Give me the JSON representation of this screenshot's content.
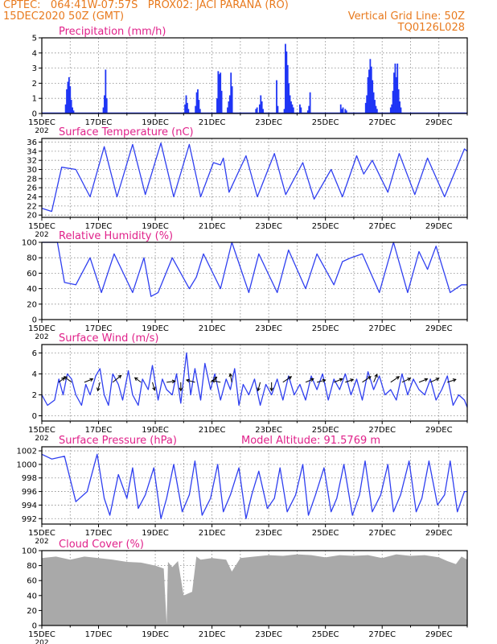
{
  "header": {
    "line1_left": "CPTEC:   064:41W-07:57S   PROX02: JACI PARANA (RO)",
    "line2_left": "15DEC2020 50Z (GMT)",
    "line2_right": "Vertical Grid Line: 50Z",
    "line3_right": "TQ0126L028"
  },
  "colors": {
    "series": "#2f3ff0",
    "bars": "#1f35f5",
    "title": "#e0218a",
    "header": "#e87a1e",
    "cloud": "#a9a9a9",
    "grid": "#888888",
    "wind_arrow": "#000000"
  },
  "x_axis": {
    "tick_labels": [
      "15DEC",
      "17DEC",
      "19DEC",
      "21DEC",
      "23DEC",
      "25DEC",
      "27DEC",
      "29DEC"
    ],
    "year_fragment": "202",
    "day_range": [
      0,
      15
    ]
  },
  "chart_data": [
    {
      "type": "bar",
      "title": "Precipitation  (mm/h)",
      "ylim": [
        0,
        5
      ],
      "yticks": [
        "0",
        "1",
        "2",
        "3",
        "4",
        "5"
      ],
      "grid": true,
      "x_unit": "days since 15DEC",
      "x": [
        0.84,
        0.88,
        0.92,
        0.96,
        1.0,
        1.04,
        1.08,
        1.12,
        2.17,
        2.21,
        2.25,
        2.29,
        5.05,
        5.09,
        5.13,
        5.17,
        5.42,
        5.46,
        5.5,
        5.54,
        5.58,
        6.18,
        6.22,
        6.26,
        6.3,
        6.34,
        6.55,
        6.59,
        6.63,
        6.67,
        6.71,
        7.55,
        7.59,
        7.68,
        7.72,
        7.76,
        7.8,
        8.28,
        8.32,
        8.55,
        8.59,
        8.63,
        8.67,
        8.71,
        8.75,
        8.79,
        8.83,
        8.87,
        9.1,
        9.14,
        9.38,
        9.42,
        9.46,
        10.54,
        10.58,
        10.62,
        10.7,
        10.74,
        11.42,
        11.46,
        11.5,
        11.54,
        11.58,
        11.62,
        11.66,
        11.7,
        11.74,
        11.78,
        11.82,
        12.3,
        12.34,
        12.38,
        12.42,
        12.46,
        12.5,
        12.54,
        12.58,
        12.62,
        12.66
      ],
      "values": [
        0.6,
        1.6,
        2.1,
        2.4,
        1.8,
        0.9,
        0.4,
        0.2,
        0.4,
        1.2,
        2.9,
        1.0,
        0.6,
        1.2,
        0.7,
        0.3,
        0.5,
        1.4,
        1.6,
        0.9,
        0.3,
        1.0,
        2.8,
        2.6,
        2.7,
        1.5,
        0.4,
        0.8,
        1.2,
        2.7,
        1.8,
        0.3,
        0.4,
        0.6,
        1.2,
        0.8,
        0.3,
        2.2,
        0.5,
        0.3,
        4.6,
        4.1,
        3.2,
        2.0,
        1.2,
        0.8,
        0.6,
        0.4,
        0.6,
        0.4,
        0.2,
        0.5,
        1.4,
        0.6,
        0.3,
        0.4,
        0.3,
        0.2,
        0.7,
        1.2,
        2.4,
        2.9,
        3.6,
        3.1,
        2.2,
        1.4,
        0.9,
        0.5,
        0.3,
        0.4,
        0.6,
        1.5,
        2.7,
        3.3,
        2.4,
        3.3,
        1.6,
        0.8,
        0.4
      ]
    },
    {
      "type": "line",
      "title": "Surface Temperature (nC)",
      "ylim": [
        19.5,
        36.8
      ],
      "yticks": [
        "20",
        "22",
        "24",
        "26",
        "28",
        "30",
        "32",
        "34",
        "36"
      ],
      "grid": true,
      "x_unit": "days since 15DEC",
      "x": [
        0,
        0.35,
        0.7,
        1.2,
        1.7,
        2.2,
        2.65,
        3.2,
        3.65,
        4.2,
        4.65,
        5.2,
        5.6,
        6.05,
        6.3,
        6.4,
        6.6,
        7.2,
        7.6,
        8.2,
        8.6,
        9.2,
        9.6,
        10.2,
        10.6,
        11.1,
        11.35,
        11.65,
        12.2,
        12.6,
        13.15,
        13.6,
        14.2,
        14.6,
        14.9,
        15.0
      ],
      "values": [
        21.5,
        20.8,
        30.5,
        30.0,
        24.0,
        35.0,
        24.0,
        35.5,
        24.5,
        35.8,
        24.0,
        35.5,
        24.0,
        31.5,
        31.0,
        32.5,
        25.0,
        33.0,
        24.0,
        33.5,
        24.5,
        31.5,
        23.5,
        30.0,
        24.0,
        33.0,
        29.0,
        32.0,
        25.0,
        33.5,
        24.5,
        32.5,
        24.0,
        30.0,
        34.5,
        34.0
      ]
    },
    {
      "type": "line",
      "title": "Relative Humidity (%)",
      "ylim": [
        0,
        100
      ],
      "yticks": [
        "0",
        "20",
        "40",
        "60",
        "80",
        "100"
      ],
      "grid": true,
      "x_unit": "days since 15DEC",
      "x": [
        0,
        0.55,
        0.8,
        1.2,
        1.7,
        2.1,
        2.55,
        3.2,
        3.6,
        3.85,
        4.1,
        4.6,
        5.2,
        5.45,
        5.7,
        6.3,
        6.7,
        7.3,
        7.65,
        8.3,
        8.7,
        9.3,
        9.7,
        10.3,
        10.6,
        10.9,
        11.3,
        11.9,
        12.4,
        12.9,
        13.3,
        13.6,
        13.9,
        14.4,
        14.8,
        15.0
      ],
      "values": [
        100,
        100,
        48,
        45,
        80,
        35,
        85,
        35,
        80,
        30,
        35,
        80,
        40,
        55,
        85,
        40,
        100,
        35,
        85,
        35,
        90,
        40,
        85,
        45,
        75,
        80,
        85,
        35,
        100,
        35,
        88,
        65,
        95,
        35,
        45,
        45
      ]
    },
    {
      "type": "line",
      "title": "Surface  Wind  (m/s)",
      "ylim": [
        -0.5,
        6.8
      ],
      "yticks": [
        "0",
        "2",
        "4",
        "6"
      ],
      "grid": true,
      "x_unit": "days since 15DEC",
      "x": [
        0,
        0.2,
        0.45,
        0.6,
        0.75,
        0.9,
        1.05,
        1.2,
        1.4,
        1.55,
        1.7,
        1.9,
        2.05,
        2.2,
        2.35,
        2.5,
        2.7,
        2.85,
        3.05,
        3.2,
        3.4,
        3.55,
        3.75,
        3.9,
        4.1,
        4.25,
        4.4,
        4.6,
        4.75,
        4.9,
        5.1,
        5.25,
        5.4,
        5.6,
        5.75,
        5.95,
        6.1,
        6.3,
        6.5,
        6.65,
        6.8,
        6.95,
        7.1,
        7.3,
        7.5,
        7.7,
        7.9,
        8.1,
        8.3,
        8.5,
        8.7,
        8.9,
        9.1,
        9.3,
        9.5,
        9.7,
        9.9,
        10.1,
        10.3,
        10.5,
        10.7,
        10.9,
        11.1,
        11.3,
        11.5,
        11.7,
        11.9,
        12.1,
        12.3,
        12.5,
        12.7,
        12.9,
        13.1,
        13.3,
        13.5,
        13.7,
        13.9,
        14.1,
        14.3,
        14.5,
        14.7,
        14.9,
        15.0
      ],
      "values": [
        2.0,
        1.0,
        1.5,
        3.5,
        2.0,
        4.0,
        3.5,
        2.0,
        1.0,
        3.0,
        2.0,
        3.8,
        4.5,
        2.0,
        1.0,
        4.0,
        3.0,
        1.5,
        4.3,
        2.0,
        1.0,
        3.5,
        2.5,
        4.8,
        1.5,
        3.5,
        2.5,
        2.0,
        4.0,
        1.2,
        6.0,
        2.0,
        4.5,
        1.5,
        5.0,
        2.5,
        4.0,
        1.5,
        3.5,
        2.5,
        4.5,
        1.0,
        3.0,
        2.0,
        3.5,
        1.0,
        3.0,
        2.0,
        3.5,
        1.5,
        3.8,
        2.0,
        3.0,
        1.5,
        3.8,
        2.5,
        4.0,
        1.5,
        3.5,
        2.5,
        4.0,
        2.0,
        3.5,
        1.5,
        4.2,
        2.5,
        3.8,
        2.0,
        2.5,
        1.5,
        4.0,
        2.0,
        3.5,
        2.5,
        2.0,
        3.5,
        1.5,
        2.5,
        3.8,
        1.0,
        2.0,
        1.5,
        0.8
      ]
    },
    {
      "type": "line",
      "title": "Surface  Pressure  (hPa)",
      "annotation": "Model  Altitude:  91.5769  m",
      "ylim": [
        991.2,
        1002.6
      ],
      "yticks": [
        "992",
        "994",
        "996",
        "998",
        "1000",
        "1002"
      ],
      "grid": true,
      "x_unit": "days since 15DEC",
      "x": [
        0,
        0.35,
        0.8,
        1.2,
        1.6,
        1.95,
        2.2,
        2.4,
        2.7,
        3.0,
        3.2,
        3.4,
        3.65,
        3.95,
        4.2,
        4.4,
        4.65,
        4.95,
        5.2,
        5.4,
        5.65,
        5.95,
        6.2,
        6.4,
        6.65,
        6.95,
        7.2,
        7.4,
        7.65,
        7.95,
        8.2,
        8.4,
        8.65,
        8.95,
        9.2,
        9.4,
        9.65,
        9.95,
        10.2,
        10.4,
        10.65,
        10.95,
        11.2,
        11.4,
        11.65,
        11.95,
        12.2,
        12.4,
        12.65,
        12.95,
        13.2,
        13.4,
        13.65,
        13.95,
        14.2,
        14.4,
        14.65,
        14.9,
        15.0
      ],
      "values": [
        1001.5,
        1000.8,
        1001.2,
        994.5,
        996.0,
        1001.5,
        995.0,
        992.5,
        998.5,
        995.0,
        999.5,
        993.5,
        995.5,
        999.5,
        992.0,
        995.0,
        1000.0,
        993.0,
        995.5,
        1000.5,
        992.5,
        995.0,
        1000.0,
        993.0,
        995.5,
        999.5,
        992.0,
        995.5,
        999.0,
        993.5,
        995.0,
        999.5,
        993.0,
        995.5,
        1000.0,
        992.5,
        995.5,
        999.5,
        993.0,
        995.0,
        1000.0,
        992.5,
        995.5,
        1000.5,
        993.0,
        995.5,
        1000.0,
        993.0,
        995.5,
        1000.5,
        993.0,
        995.0,
        1000.5,
        994.0,
        995.5,
        1000.5,
        993.0,
        996.0,
        996.0
      ]
    },
    {
      "type": "area",
      "title": "Cloud Cover (%)",
      "ylim": [
        0,
        100
      ],
      "yticks": [
        "0",
        "20",
        "40",
        "60",
        "80",
        "100"
      ],
      "grid": true,
      "x_unit": "days since 15DEC",
      "x": [
        0,
        0.5,
        1.0,
        1.5,
        2.0,
        2.5,
        3.0,
        3.5,
        4.0,
        4.3,
        4.4,
        4.45,
        4.6,
        4.8,
        5.0,
        5.3,
        5.45,
        5.6,
        6.0,
        6.5,
        6.7,
        7.0,
        7.5,
        8.0,
        8.5,
        9.0,
        9.5,
        10.0,
        10.5,
        11.0,
        11.5,
        12.0,
        12.5,
        13.0,
        13.5,
        14.0,
        14.3,
        14.6,
        14.8,
        15.0
      ],
      "values": [
        90,
        92,
        88,
        92,
        90,
        88,
        85,
        84,
        80,
        76,
        2,
        85,
        78,
        86,
        40,
        45,
        92,
        88,
        90,
        88,
        72,
        90,
        92,
        94,
        93,
        95,
        94,
        91,
        94,
        93,
        94,
        90,
        95,
        93,
        94,
        91,
        86,
        82,
        92,
        88
      ]
    }
  ],
  "wind_vectors": {
    "x": [
      0.6,
      1.05,
      1.5,
      2.05,
      2.5,
      3.5,
      3.9,
      4.4,
      4.9,
      5.4,
      5.95,
      6.3,
      6.7,
      7.7,
      8.1,
      8.5,
      9.3,
      9.7,
      10.3,
      10.7,
      11.3,
      11.7,
      12.3,
      12.7,
      13.3,
      13.7,
      14.3
    ],
    "u": [
      1.0,
      -1.3,
      1.5,
      -0.4,
      1.5,
      -1.1,
      0.4,
      1.5,
      0.0,
      -1.5,
      1.1,
      -1.5,
      -0.3,
      -0.4,
      0.0,
      1.5,
      1.4,
      1.5,
      1.5,
      1.4,
      1.5,
      0.6,
      1.5,
      1.5,
      1.5,
      1.5,
      1.5
    ],
    "v": [
      0.8,
      1.0,
      0.6,
      -1.5,
      1.2,
      0.8,
      -1.4,
      0.2,
      -1.5,
      0.4,
      0.9,
      0.3,
      1.5,
      -1.5,
      -1.5,
      1.0,
      0.6,
      0.4,
      0.6,
      0.5,
      1.0,
      1.4,
      1.0,
      0.7,
      0.6,
      0.7,
      0.5
    ]
  }
}
